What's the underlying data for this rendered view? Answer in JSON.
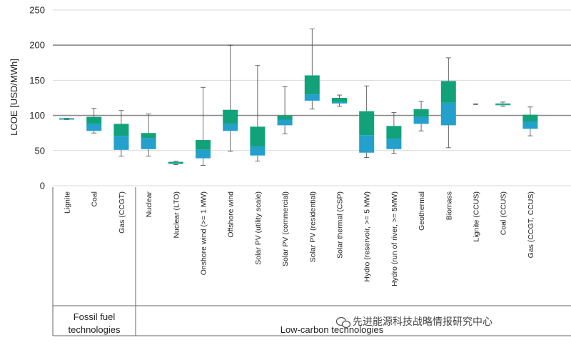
{
  "chart_data": {
    "type": "box",
    "ylabel": "LCOE [USD/MWh]",
    "ylim": [
      0,
      250
    ],
    "yticks": [
      0,
      50,
      100,
      150,
      200,
      250
    ],
    "emphasized_gridlines": [
      100,
      200
    ],
    "categories": [
      "Lignite",
      "Coal",
      "Gas (CCGT)",
      "Nuclear",
      "Nuclear (LTO)",
      "Onshore wind (>= 1 MW)",
      "Offshore wind",
      "Solar PV (utility scale)",
      "Solar PV (commercial)",
      "Solar PV (residential)",
      "Solar thermal (CSP)",
      "Hydro (reservoir, >= 5 MW)",
      "Hydro (run of river, >= 5MW)",
      "Geothermal",
      "Biomass",
      "Lignite (CCUS)",
      "Coal (CCUS)",
      "Gas (CCGT, CCUS)"
    ],
    "boxes": [
      {
        "min": 94,
        "q1": 94,
        "median": 95,
        "q3": 96,
        "max": 96
      },
      {
        "min": 75,
        "q1": 78,
        "median": 88,
        "q3": 98,
        "max": 110
      },
      {
        "min": 42,
        "q1": 51,
        "median": 71,
        "q3": 88,
        "max": 107
      },
      {
        "min": 42,
        "q1": 52,
        "median": 68,
        "q3": 75,
        "max": 102
      },
      {
        "min": 30,
        "q1": 31,
        "median": 32,
        "q3": 34,
        "max": 35
      },
      {
        "min": 29,
        "q1": 39,
        "median": 51,
        "q3": 65,
        "max": 140
      },
      {
        "min": 49,
        "q1": 78,
        "median": 88,
        "q3": 108,
        "max": 200
      },
      {
        "min": 35,
        "q1": 43,
        "median": 56,
        "q3": 84,
        "max": 171
      },
      {
        "min": 74,
        "q1": 86,
        "median": 94,
        "q3": 100,
        "max": 141
      },
      {
        "min": 109,
        "q1": 121,
        "median": 130,
        "q3": 157,
        "max": 223
      },
      {
        "min": 113,
        "q1": 117,
        "median": 119,
        "q3": 125,
        "max": 129
      },
      {
        "min": 40,
        "q1": 47,
        "median": 72,
        "q3": 106,
        "max": 142
      },
      {
        "min": 46,
        "q1": 52,
        "median": 67,
        "q3": 85,
        "max": 104
      },
      {
        "min": 78,
        "q1": 88,
        "median": 98,
        "q3": 109,
        "max": 120
      },
      {
        "min": 54,
        "q1": 86,
        "median": 118,
        "q3": 149,
        "max": 182
      },
      {
        "min": 116,
        "q1": 116,
        "median": 116,
        "q3": 116,
        "max": 116
      },
      {
        "min": 113,
        "q1": 115,
        "median": 115,
        "q3": 117,
        "max": 119
      },
      {
        "min": 71,
        "q1": 81,
        "median": 91,
        "q3": 101,
        "max": 112
      }
    ],
    "groups": [
      {
        "label_lines": [
          "Fossil fuel",
          "technologies"
        ],
        "count": 3
      },
      {
        "label_lines": [
          "Low-carbon technologies"
        ],
        "count": 15
      }
    ],
    "colors": {
      "upper": "#12a27a",
      "lower": "#23a0cb",
      "whisker": "#444444",
      "grid": "#d8d8d8",
      "grid_major": "#8a8a8a",
      "axis": "#666666"
    }
  },
  "watermark": "先进能源科技战略情报研究中心"
}
